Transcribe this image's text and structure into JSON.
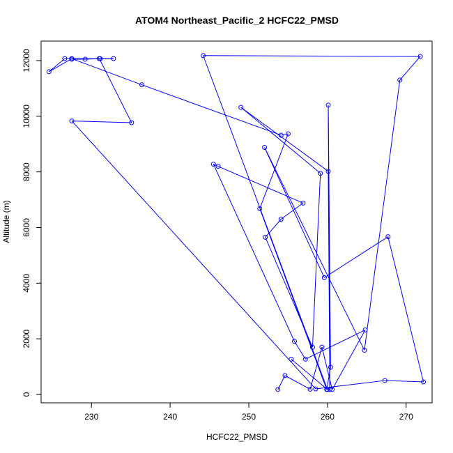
{
  "chart_data": {
    "type": "line",
    "title": "ATOM4 Northeast_Pacific_2 HCFC22_PMSD",
    "xlabel": "HCFC22_PMSD",
    "ylabel": "Altitude (m)",
    "xlim": [
      223.6,
      273.3
    ],
    "ylim": [
      -300,
      12700
    ],
    "xticks": [
      230,
      240,
      250,
      260,
      270
    ],
    "yticks": [
      0,
      2000,
      4000,
      6000,
      8000,
      10000,
      12000
    ],
    "grid": false,
    "series_color": "#0000ff",
    "marker": "open-circle",
    "series": [
      {
        "x": [
          253.7,
          254.6,
          257.8,
          259.3,
          260.6,
          264.8,
          257.2,
          255.8,
          245.5,
          246.1,
          256.9,
          254.1,
          252.1,
          258.1,
          259.1,
          249.0,
          260.1,
          260.3,
          260.1,
          260.4,
          259.9,
          251.4,
          255.0,
          254.1,
          236.4,
          227.5,
          224.6,
          226.6,
          231.1,
          232.8,
          227.5,
          229.2,
          231.0,
          235.1,
          227.5,
          258.5,
          267.3,
          272.2,
          267.7,
          259.6,
          252.0,
          264.7,
          269.2,
          271.8,
          244.2,
          260.0,
          255.4
        ],
        "y": [
          180,
          680,
          190,
          1700,
          180,
          2320,
          1270,
          1910,
          8280,
          8200,
          6880,
          6300,
          5650,
          1700,
          7950,
          10320,
          8020,
          180,
          10400,
          980,
          180,
          6680,
          9370,
          9320,
          11130,
          12070,
          11600,
          12070,
          12070,
          12070,
          12050,
          12050,
          12070,
          9770,
          9830,
          200,
          500,
          450,
          5670,
          4200,
          8880,
          1590,
          11300,
          12150,
          12180,
          180,
          1270
        ]
      }
    ]
  }
}
